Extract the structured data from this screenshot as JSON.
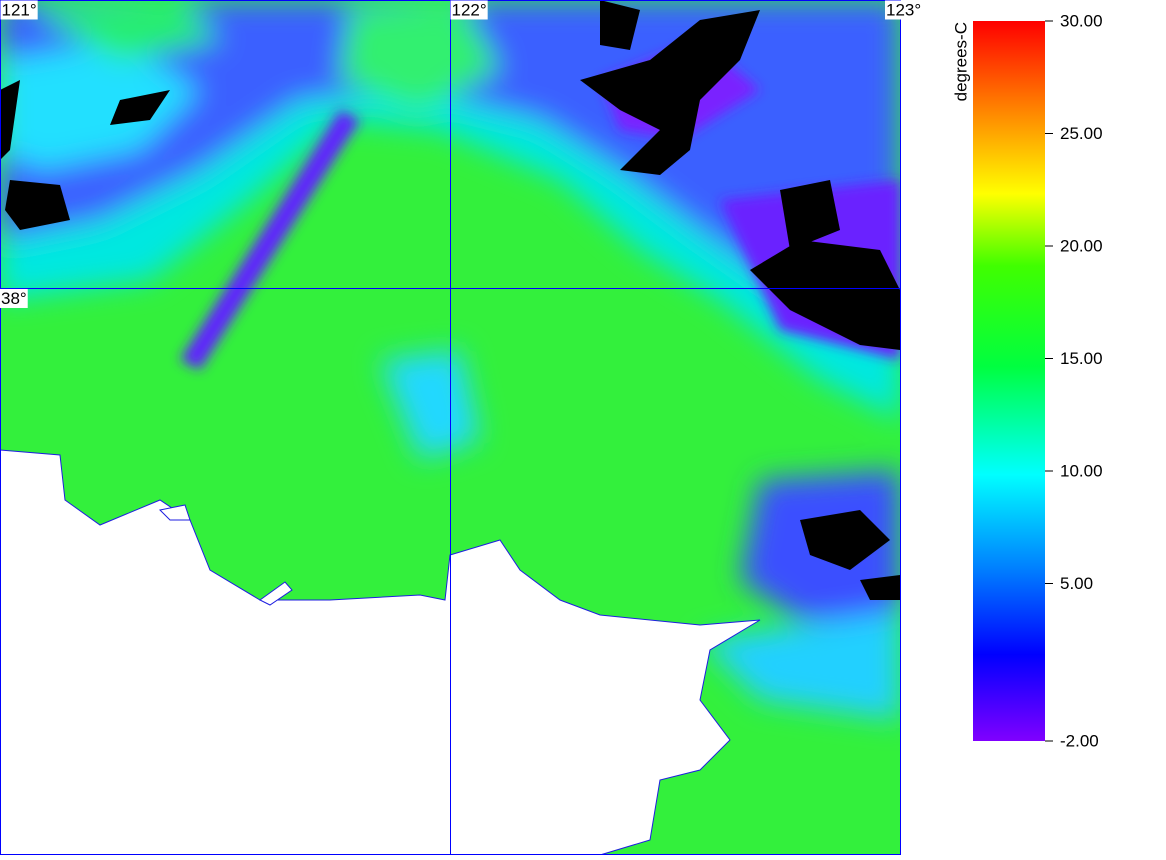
{
  "map": {
    "lonlim": [
      121,
      123
    ],
    "latlim": [
      38.64,
      36.74
    ],
    "lon_ticks": [
      {
        "value": 121,
        "label": "121°"
      },
      {
        "value": 122,
        "label": "122°"
      },
      {
        "value": 123,
        "label": "123°"
      }
    ],
    "lat_ticks": [
      {
        "value": 38,
        "label": "38°"
      }
    ],
    "colorbar": {
      "label": "degrees-C",
      "lim": [
        -2,
        30
      ],
      "ticks": [
        {
          "value": 30,
          "label": "30.00"
        },
        {
          "value": 25,
          "label": "25.00"
        },
        {
          "value": 20,
          "label": "20.00"
        },
        {
          "value": 15,
          "label": "15.00"
        },
        {
          "value": 10,
          "label": "10.00"
        },
        {
          "value": 5,
          "label": "5.00"
        },
        {
          "value": -2,
          "label": "-2.00"
        }
      ]
    }
  }
}
